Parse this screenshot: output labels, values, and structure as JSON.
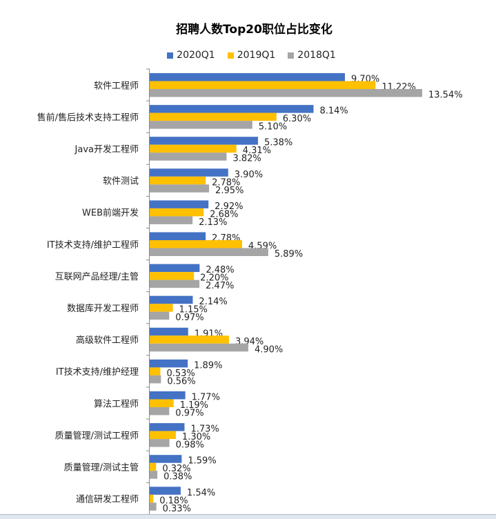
{
  "chart_data": {
    "type": "bar",
    "orientation": "horizontal",
    "title": "招聘人数Top20职位占比变化",
    "xlabel": "",
    "ylabel": "",
    "legend_position": "top",
    "grid": false,
    "categories": [
      "软件工程师",
      "售前/售后技术支持工程师",
      "Java开发工程师",
      "软件测试",
      "WEB前端开发",
      "IT技术支持/维护工程师",
      "互联网产品经理/主管",
      "数据库开发工程师",
      "高级软件工程师",
      "IT技术支持/维护经理",
      "算法工程师",
      "质量管理/测试工程师",
      "质量管理/测试主管",
      "通信研发工程师"
    ],
    "series": [
      {
        "name": "2020Q1",
        "color": "#4472c4",
        "values": [
          9.7,
          8.14,
          5.38,
          3.9,
          2.92,
          2.78,
          2.48,
          2.14,
          1.91,
          1.89,
          1.77,
          1.73,
          1.59,
          1.54
        ]
      },
      {
        "name": "2019Q1",
        "color": "#ffc000",
        "values": [
          11.22,
          6.3,
          4.31,
          2.78,
          2.68,
          4.59,
          2.2,
          1.15,
          3.94,
          0.53,
          1.19,
          1.3,
          0.32,
          0.18
        ]
      },
      {
        "name": "2018Q1",
        "color": "#a5a5a5",
        "values": [
          13.54,
          5.1,
          3.82,
          2.95,
          2.13,
          5.89,
          2.47,
          0.97,
          4.9,
          0.56,
          0.97,
          0.98,
          0.38,
          0.33
        ]
      }
    ],
    "value_format": "percent_2dp"
  }
}
